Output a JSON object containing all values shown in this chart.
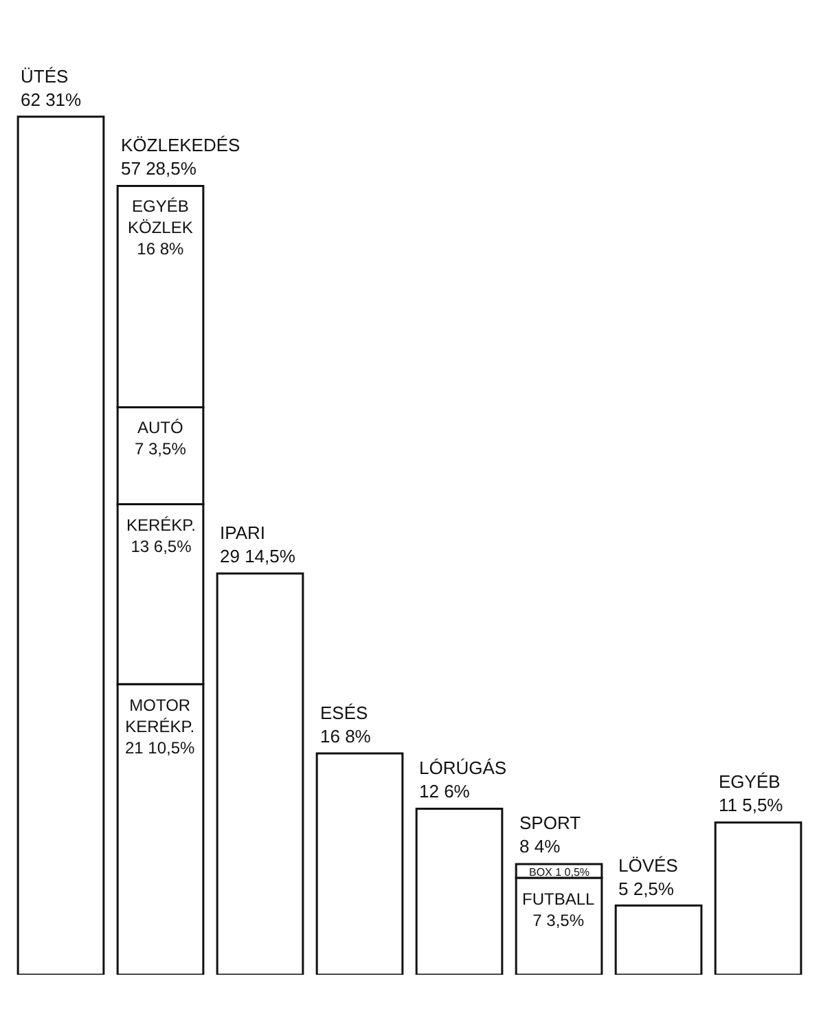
{
  "chart_data": {
    "type": "bar",
    "stacked": true,
    "categories": [
      "ÜTÉS",
      "KÖZLEKEDÉS",
      "IPARI",
      "ESÉS",
      "LÓRÚGÁS",
      "SPORT",
      "LÖVÉS",
      "EGYÉB"
    ],
    "totals": [
      "62 31%",
      "57 28,5%",
      "29 14,5%",
      "16 8%",
      "12 6%",
      "8 4%",
      "5 2,5%",
      "11 5,5%"
    ],
    "series": [
      {
        "color": "#ffffff",
        "values": [
          62,
          null,
          29,
          16,
          12,
          null,
          5,
          11
        ]
      },
      {
        "name": "MOTOR KERÉKP.",
        "color": "#ffffff",
        "values": [
          null,
          21,
          null,
          null,
          null,
          null,
          null,
          null
        ],
        "value_labels": [
          null,
          "21 10,5%",
          null,
          null,
          null,
          null,
          null,
          null
        ]
      },
      {
        "name": "KERÉKP.",
        "color": "#ffffff",
        "values": [
          null,
          13,
          null,
          null,
          null,
          null,
          null,
          null
        ],
        "value_labels": [
          null,
          "13 6,5%",
          null,
          null,
          null,
          null,
          null,
          null
        ]
      },
      {
        "name": "AUTÓ",
        "color": "#ffffff",
        "values": [
          null,
          7,
          null,
          null,
          null,
          null,
          null,
          null
        ],
        "value_labels": [
          null,
          "7 3,5%",
          null,
          null,
          null,
          null,
          null,
          null
        ]
      },
      {
        "name": "EGYÉB KÖZLEK",
        "color": "#ffffff",
        "values": [
          null,
          16,
          null,
          null,
          null,
          null,
          null,
          null
        ],
        "value_labels": [
          null,
          "16 8%",
          null,
          null,
          null,
          null,
          null,
          null
        ]
      },
      {
        "name": "FUTBALL",
        "color": "#ffffff",
        "values": [
          null,
          null,
          null,
          null,
          null,
          7,
          null,
          null
        ],
        "value_labels": [
          null,
          null,
          null,
          null,
          null,
          "7 3,5%",
          null,
          null
        ]
      },
      {
        "name": "BOX",
        "color": "#ffffff",
        "values": [
          null,
          null,
          null,
          null,
          null,
          1,
          null,
          null
        ],
        "value_labels": [
          null,
          null,
          null,
          null,
          null,
          "1 0,5%",
          null,
          null
        ]
      }
    ]
  }
}
